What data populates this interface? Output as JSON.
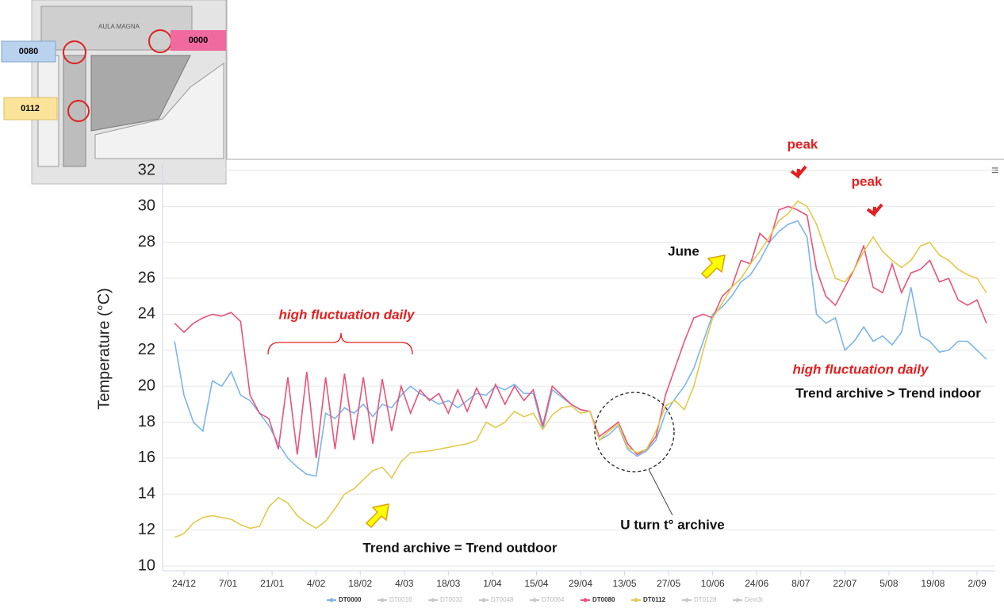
{
  "floor_plan": {
    "title": "AULA MAGNA",
    "labels": [
      "0080",
      "0000",
      "0112"
    ]
  },
  "chart_data": {
    "type": "line",
    "y_label": "Temperature (°C)",
    "ylim": [
      10,
      32
    ],
    "yticks": [
      10,
      12,
      14,
      16,
      18,
      20,
      22,
      24,
      26,
      28,
      30,
      32
    ],
    "xlim": [
      -5,
      260
    ],
    "xticks": [
      {
        "value": 0,
        "label": "24/12"
      },
      {
        "value": 14,
        "label": "7/01"
      },
      {
        "value": 28,
        "label": "21/01"
      },
      {
        "value": 42,
        "label": "4/02"
      },
      {
        "value": 56,
        "label": "18/02"
      },
      {
        "value": 70,
        "label": "4/03"
      },
      {
        "value": 84,
        "label": "18/03"
      },
      {
        "value": 98,
        "label": "1/04"
      },
      {
        "value": 112,
        "label": "15/04"
      },
      {
        "value": 126,
        "label": "29/04"
      },
      {
        "value": 140,
        "label": "13/05"
      },
      {
        "value": 154,
        "label": "27/05"
      },
      {
        "value": 168,
        "label": "10/06"
      },
      {
        "value": 182,
        "label": "24/06"
      },
      {
        "value": 196,
        "label": "8/07"
      },
      {
        "value": 210,
        "label": "22/07"
      },
      {
        "value": 224,
        "label": "5/08"
      },
      {
        "value": 238,
        "label": "19/08"
      },
      {
        "value": 252,
        "label": "2/09"
      }
    ],
    "grid": true,
    "x": [
      -3,
      0,
      3,
      6,
      9,
      12,
      15,
      18,
      21,
      24,
      27,
      30,
      33,
      36,
      39,
      42,
      45,
      48,
      51,
      54,
      57,
      60,
      63,
      66,
      69,
      72,
      75,
      78,
      81,
      84,
      87,
      90,
      93,
      96,
      99,
      102,
      105,
      108,
      111,
      114,
      117,
      120,
      123,
      126,
      129,
      132,
      135,
      138,
      141,
      144,
      147,
      150,
      153,
      156,
      159,
      162,
      165,
      168,
      171,
      174,
      177,
      180,
      183,
      186,
      189,
      192,
      195,
      198,
      201,
      204,
      207,
      210,
      213,
      216,
      219,
      222,
      225,
      228,
      231,
      234,
      237,
      240,
      243,
      246,
      249,
      252,
      255
    ],
    "series": [
      {
        "name": "DT0000",
        "color": "#7cb5ec",
        "values": [
          22.5,
          19.5,
          18.0,
          17.5,
          20.3,
          20.0,
          20.8,
          19.5,
          19.2,
          18.5,
          17.8,
          16.8,
          16.0,
          15.5,
          15.1,
          15.0,
          18.5,
          18.2,
          18.8,
          18.5,
          19.0,
          18.3,
          19.0,
          18.8,
          19.5,
          20.0,
          19.6,
          19.3,
          19.0,
          19.2,
          18.8,
          19.2,
          19.6,
          19.5,
          20.0,
          19.8,
          20.1,
          19.6,
          19.6,
          17.6,
          19.8,
          19.4,
          19.0,
          18.7,
          18.6,
          17.0,
          17.3,
          17.8,
          16.5,
          16.1,
          16.4,
          17.0,
          18.5,
          19.3,
          20.0,
          21.0,
          22.5,
          24.0,
          24.4,
          25.0,
          25.8,
          26.2,
          27.0,
          28.0,
          28.6,
          29.0,
          29.2,
          28.3,
          24.0,
          23.5,
          23.8,
          22.0,
          22.5,
          23.3,
          22.5,
          22.8,
          22.3,
          23.0,
          25.5,
          22.8,
          22.5,
          21.9,
          22.0,
          22.5,
          22.5,
          22.0,
          21.5
        ]
      },
      {
        "name": "DT0080",
        "color": "#e8547a",
        "values": [
          23.5,
          23.0,
          23.5,
          23.8,
          24.0,
          23.9,
          24.1,
          23.6,
          19.5,
          18.5,
          18.2,
          16.5,
          20.5,
          16.2,
          20.8,
          16.0,
          20.5,
          16.5,
          20.7,
          17.0,
          20.5,
          16.8,
          20.4,
          17.5,
          20.0,
          18.5,
          19.8,
          19.2,
          19.6,
          18.5,
          19.8,
          18.6,
          19.9,
          18.8,
          20.1,
          19.0,
          20.0,
          19.2,
          19.8,
          17.8,
          20.0,
          19.5,
          19.0,
          18.7,
          18.6,
          17.2,
          17.6,
          18.0,
          16.8,
          16.2,
          16.5,
          17.2,
          19.5,
          21.0,
          22.5,
          23.8,
          24.0,
          23.8,
          25.0,
          25.5,
          27.0,
          26.8,
          28.5,
          28.0,
          29.8,
          30.0,
          29.8,
          29.5,
          26.5,
          25.0,
          24.5,
          25.5,
          26.5,
          27.8,
          25.5,
          25.2,
          26.8,
          25.2,
          26.3,
          26.5,
          27.0,
          25.8,
          26.0,
          24.8,
          24.5,
          24.8,
          23.5
        ]
      },
      {
        "name": "DT0112",
        "color": "#e3c94c",
        "values": [
          11.6,
          11.8,
          12.4,
          12.7,
          12.8,
          12.7,
          12.6,
          12.3,
          12.1,
          12.2,
          13.3,
          13.8,
          13.5,
          12.8,
          12.4,
          12.1,
          12.5,
          13.2,
          14.0,
          14.3,
          14.8,
          15.3,
          15.5,
          14.9,
          15.8,
          16.3,
          16.35,
          16.4,
          16.5,
          16.6,
          16.7,
          16.8,
          17.0,
          18.0,
          17.7,
          18.0,
          18.6,
          18.3,
          18.5,
          17.6,
          18.4,
          18.8,
          18.9,
          18.5,
          18.6,
          17.0,
          17.5,
          17.9,
          16.6,
          16.3,
          16.5,
          17.5,
          18.9,
          19.2,
          18.7,
          20.0,
          22.0,
          23.8,
          24.6,
          25.5,
          26.0,
          26.8,
          27.5,
          28.3,
          29.2,
          29.6,
          30.3,
          30.0,
          29.0,
          27.5,
          26.0,
          25.8,
          26.5,
          27.5,
          28.3,
          27.5,
          27.0,
          26.6,
          27.0,
          27.8,
          28.0,
          27.3,
          27.0,
          26.5,
          26.2,
          26.0,
          25.2
        ]
      }
    ],
    "hidden_series": [
      "DT0016",
      "DT0032",
      "DT0048",
      "DT0064",
      "DT0128",
      "Dext3r"
    ],
    "hidden_color": "#c8c8c8",
    "annotations": [
      "peak",
      "peak",
      "June",
      "high fluctuation daily",
      "high fluctuation daily",
      "Trend archive > Trend indoor",
      "U turn t° archive",
      "Trend archive = Trend outdoor"
    ]
  }
}
